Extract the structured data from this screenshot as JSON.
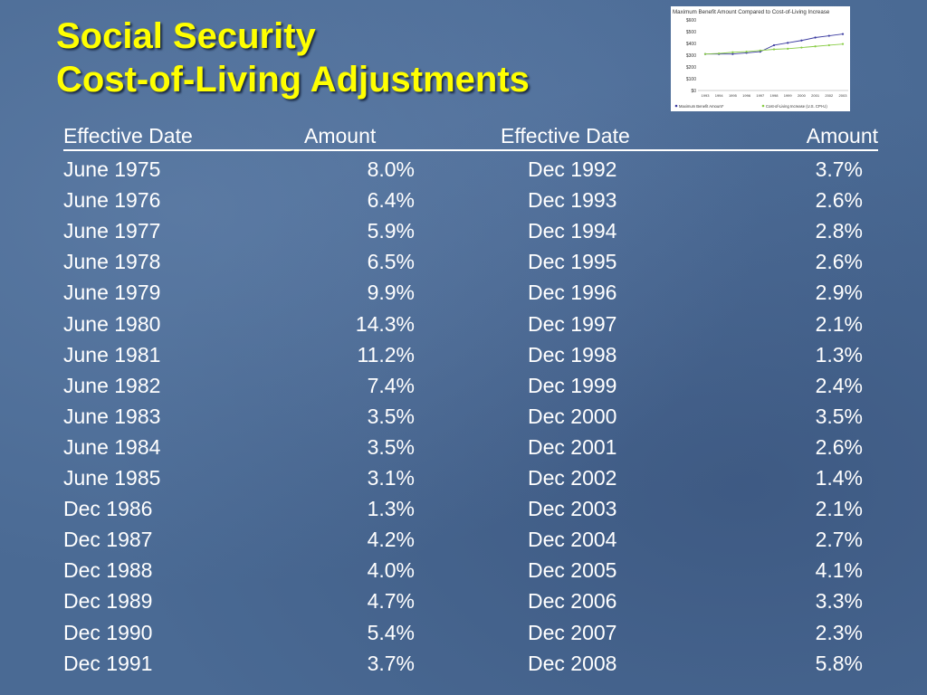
{
  "title": {
    "line1": "Social Security",
    "line2": "Cost-of-Living Adjustments"
  },
  "thumbnail_chart": {
    "title": "Maximum Benefit Amount Compared to Cost-of-Living Increase",
    "y_ticks": [
      "$600",
      "$500",
      "$400",
      "$300",
      "$200",
      "$100",
      "$0"
    ],
    "x_ticks": [
      "1993",
      "1994",
      "1995",
      "1996",
      "1997",
      "1998",
      "1999",
      "2000",
      "2001",
      "2002",
      "2003"
    ],
    "legend": [
      "Maximum Benefit Amount*",
      "Cost-of-Living Increase (U.S. CPI-U)"
    ],
    "colors": {
      "series1": "#3a3aa0",
      "series2": "#88cc44"
    }
  },
  "chart_data": {
    "type": "line",
    "title": "Maximum Benefit Amount Compared to Cost-of-Living Increase",
    "x": [
      "1993",
      "1994",
      "1995",
      "1996",
      "1997",
      "1998",
      "1999",
      "2000",
      "2001",
      "2002",
      "2003"
    ],
    "ylim": [
      0,
      600
    ],
    "series": [
      {
        "name": "Maximum Benefit Amount*",
        "values": [
          310,
          310,
          310,
          320,
          330,
          385,
          405,
          425,
          450,
          465,
          480
        ]
      },
      {
        "name": "Cost-of-Living Increase (U.S. CPI-U)",
        "values": [
          310,
          315,
          325,
          330,
          340,
          350,
          355,
          365,
          375,
          385,
          395
        ]
      }
    ]
  },
  "table": {
    "headers": [
      "Effective Date",
      "Amount",
      "Effective Date",
      "Amount"
    ],
    "rows": [
      [
        "June 1975",
        "8.0%",
        "Dec 1992",
        "3.7%"
      ],
      [
        "June 1976",
        "6.4%",
        "Dec 1993",
        "2.6%"
      ],
      [
        "June 1977",
        "5.9%",
        "Dec 1994",
        "2.8%"
      ],
      [
        "June 1978",
        "6.5%",
        "Dec 1995",
        "2.6%"
      ],
      [
        "June 1979",
        "9.9%",
        "Dec 1996",
        "2.9%"
      ],
      [
        "June 1980",
        "14.3%",
        "Dec 1997",
        "2.1%"
      ],
      [
        "June 1981",
        "11.2%",
        "Dec 1998",
        "1.3%"
      ],
      [
        "June 1982",
        "7.4%",
        "Dec 1999",
        "2.4%"
      ],
      [
        "June 1983",
        "3.5%",
        "Dec 2000",
        "3.5%"
      ],
      [
        "June 1984",
        "3.5%",
        "Dec 2001",
        "2.6%"
      ],
      [
        "June 1985",
        "3.1%",
        "Dec 2002",
        "1.4%"
      ],
      [
        "Dec 1986",
        "1.3%",
        "Dec 2003",
        "2.1%"
      ],
      [
        "Dec 1987",
        "4.2%",
        "Dec 2004",
        "2.7%"
      ],
      [
        "Dec 1988",
        "4.0%",
        "Dec 2005",
        "4.1%"
      ],
      [
        "Dec 1989",
        "4.7%",
        "Dec 2006",
        "3.3%"
      ],
      [
        "Dec 1990",
        "5.4%",
        "Dec 2007",
        "2.3%"
      ],
      [
        "Dec 1991",
        "3.7%",
        "Dec 2008",
        "5.8%"
      ]
    ]
  }
}
